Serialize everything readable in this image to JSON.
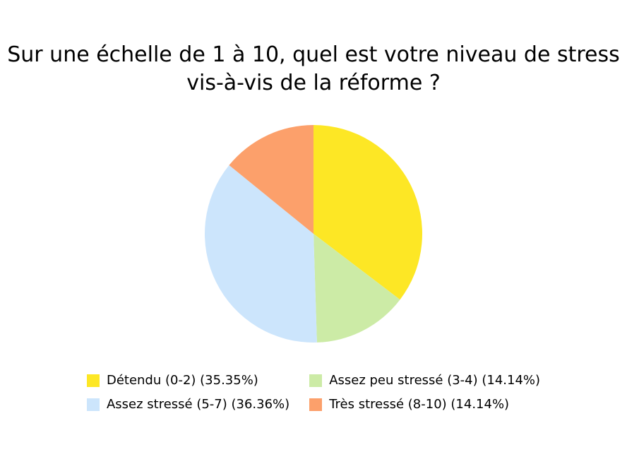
{
  "chart_data": {
    "type": "pie",
    "title_lines": [
      "Sur une échelle de 1 à 10, quel est votre niveau de stress",
      "vis-à-vis de la réforme ?"
    ],
    "slices": [
      {
        "label": "Détendu (0-2) (35.35%)",
        "value": 35.35,
        "color": "#FDE725"
      },
      {
        "label": "Assez peu stressé (3-4) (14.14%)",
        "value": 14.14,
        "color": "#CCEBA6"
      },
      {
        "label": "Assez stressé (5-7) (36.36%)",
        "value": 36.36,
        "color": "#CCE5FC"
      },
      {
        "label": "Très stressé (8-10) (14.14%)",
        "value": 14.14,
        "color": "#FCA06B"
      }
    ],
    "legend_position": "bottom"
  }
}
